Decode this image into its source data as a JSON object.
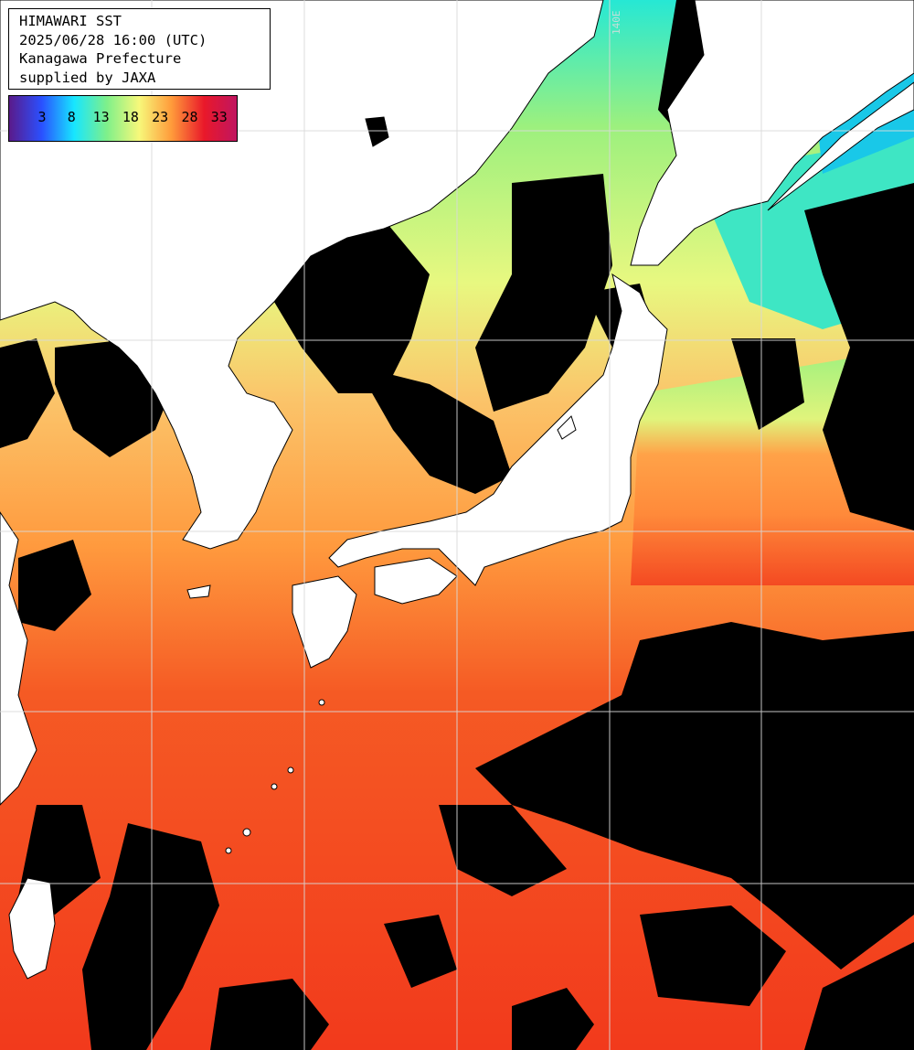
{
  "header": {
    "line1": "HIMAWARI SST",
    "line2": "2025/06/28 16:00 (UTC)",
    "line3": "Kanagawa Prefecture",
    "line4": "supplied by JAXA"
  },
  "legend": {
    "ticks": [
      "3",
      "8",
      "13",
      "18",
      "23",
      "28",
      "33"
    ],
    "colors": [
      "#5a1a8a",
      "#2a50ff",
      "#17e6ff",
      "#7ef08a",
      "#f7f87a",
      "#ff9a3a",
      "#e9182a",
      "#c01560"
    ]
  },
  "grid": {
    "label_140e": "140E"
  },
  "palette": {
    "land": "#ffffff",
    "cloud": "#000000",
    "cold_sea": "#26e8d4",
    "cool_sea": "#9cf07e",
    "mild_sea": "#e8f880",
    "warm_sea": "#fbc46a",
    "hot_sea": "#ff8a3a",
    "very_hot_sea": "#f44a22",
    "gridline": "#d9d9d9"
  }
}
